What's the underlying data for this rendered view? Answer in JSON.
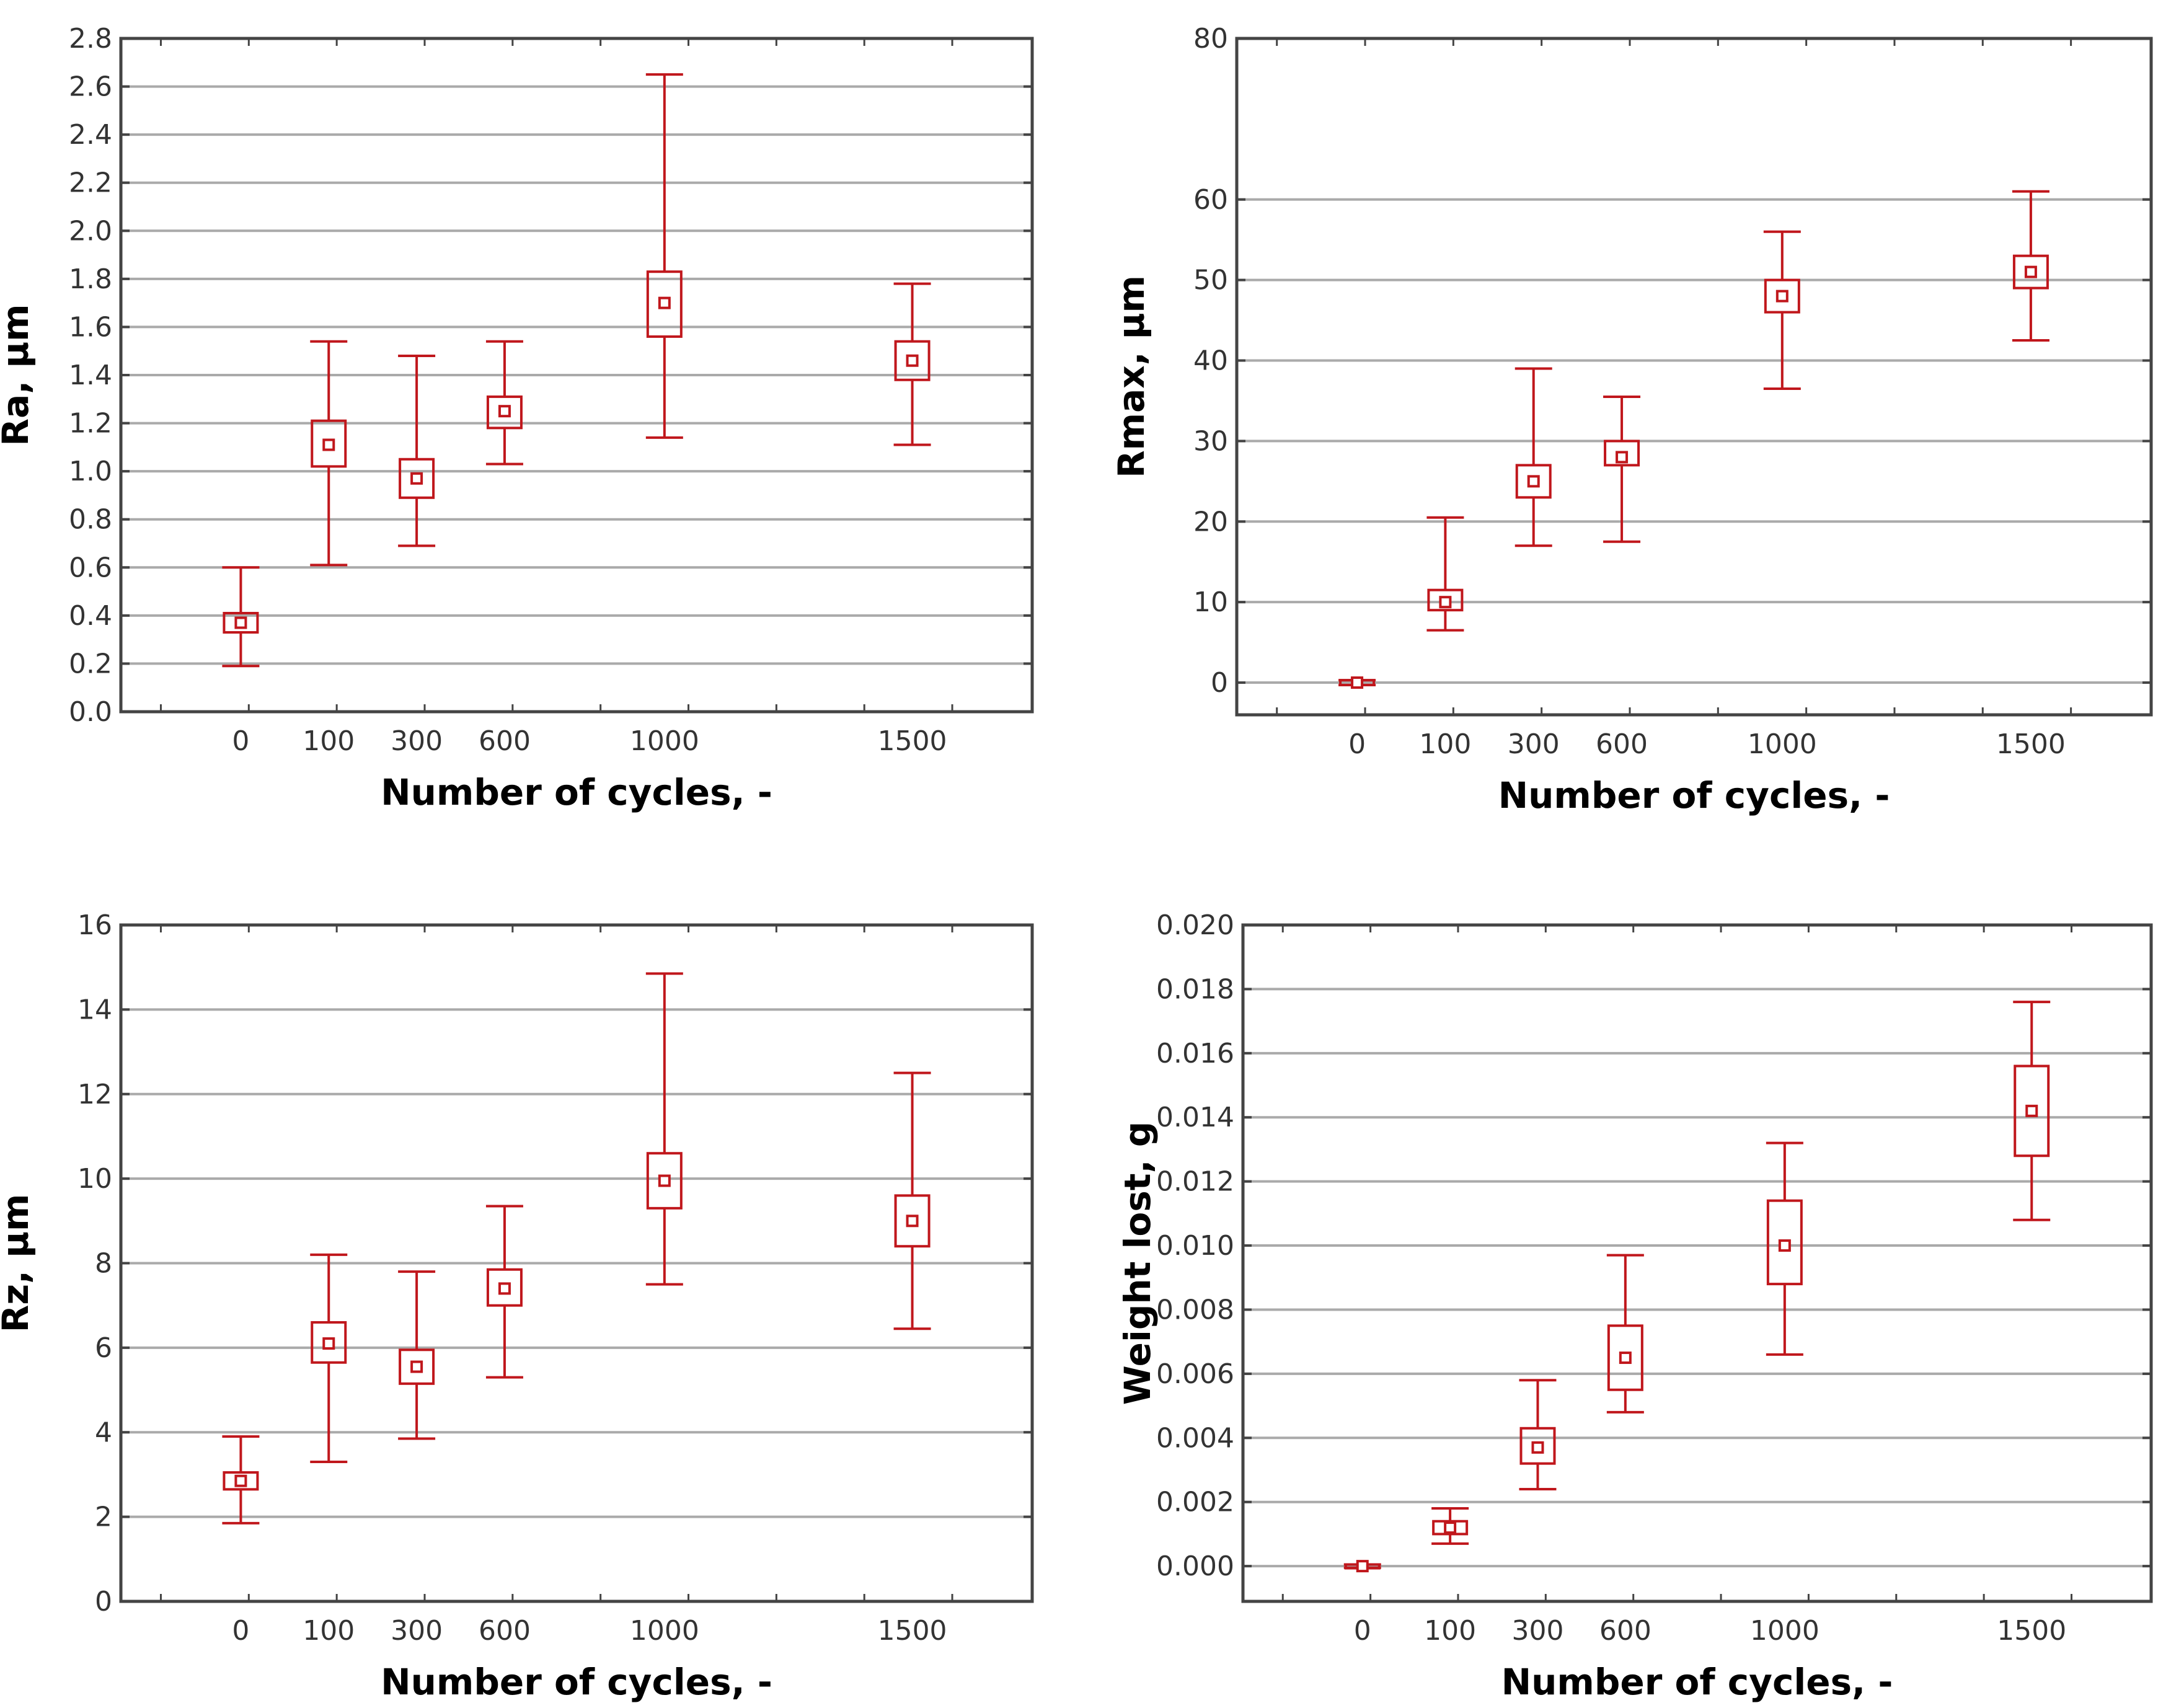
{
  "chart_data": [
    {
      "type": "box",
      "title": "",
      "xlabel": "Number of cycles, -",
      "ylabel": "Ra, µm",
      "ylim": [
        0,
        2.8
      ],
      "yticks": [
        "0.0",
        "0.2",
        "0.4",
        "0.6",
        "0.8",
        "1.0",
        "1.2",
        "1.4",
        "1.6",
        "1.8",
        "2.0",
        "2.2",
        "2.4",
        "2.6",
        "2.8"
      ],
      "grid": true,
      "x_tick_labels": [
        "0",
        "100",
        "300",
        "600",
        "1000",
        "1500"
      ],
      "x_positions": [
        0,
        100,
        300,
        600,
        1000,
        1500
      ],
      "series": [
        {
          "name": "Ra",
          "mean": [
            0.37,
            1.11,
            0.97,
            1.25,
            1.7,
            1.46
          ],
          "box_low": [
            0.33,
            1.02,
            0.89,
            1.18,
            1.56,
            1.38
          ],
          "box_high": [
            0.41,
            1.21,
            1.05,
            1.31,
            1.83,
            1.54
          ],
          "whisker_low": [
            0.19,
            0.61,
            0.69,
            1.03,
            1.14,
            1.11
          ],
          "whisker_high": [
            0.6,
            1.54,
            1.48,
            1.54,
            2.65,
            1.78
          ]
        }
      ]
    },
    {
      "type": "box",
      "title": "",
      "xlabel": "Number of cycles, -",
      "ylabel": "Rmax, µm",
      "ylim": [
        -4,
        80
      ],
      "yticks": [
        "0",
        "10",
        "20",
        "30",
        "40",
        "50",
        "60",
        "80"
      ],
      "grid": true,
      "x_tick_labels": [
        "0",
        "100",
        "300",
        "600",
        "1000",
        "1500"
      ],
      "x_positions": [
        0,
        100,
        300,
        600,
        1000,
        1500
      ],
      "series": [
        {
          "name": "Rmax",
          "mean": [
            0,
            10,
            25,
            28,
            48,
            51
          ],
          "box_low": [
            -0.3,
            9,
            23,
            27,
            46,
            49
          ],
          "box_high": [
            0.3,
            11.5,
            27,
            30,
            50,
            53
          ],
          "whisker_low": [
            -0.3,
            6.5,
            17,
            17.5,
            36.5,
            42.5
          ],
          "whisker_high": [
            0.3,
            20.5,
            39,
            35.5,
            56,
            61
          ]
        }
      ]
    },
    {
      "type": "box",
      "title": "",
      "xlabel": "Number of cycles, -",
      "ylabel": "Rz, µm",
      "ylim": [
        0,
        16
      ],
      "yticks": [
        "0",
        "2",
        "4",
        "6",
        "8",
        "10",
        "12",
        "14",
        "16"
      ],
      "grid": true,
      "x_tick_labels": [
        "0",
        "100",
        "300",
        "600",
        "1000",
        "1500"
      ],
      "x_positions": [
        0,
        100,
        300,
        600,
        1000,
        1500
      ],
      "series": [
        {
          "name": "Rz",
          "mean": [
            2.85,
            6.1,
            5.55,
            7.4,
            9.95,
            9.0
          ],
          "box_low": [
            2.65,
            5.65,
            5.15,
            7.0,
            9.3,
            8.4
          ],
          "box_high": [
            3.05,
            6.6,
            5.95,
            7.85,
            10.6,
            9.6
          ],
          "whisker_low": [
            1.85,
            3.3,
            3.85,
            5.3,
            7.5,
            6.45
          ],
          "whisker_high": [
            3.9,
            8.2,
            7.8,
            9.35,
            14.85,
            12.5
          ]
        }
      ]
    },
    {
      "type": "box",
      "title": "",
      "xlabel": "Number of cycles, -",
      "ylabel": "Weight lost, g",
      "ylim": [
        -0.0011,
        0.02
      ],
      "yticks": [
        "0.000",
        "0.002",
        "0.004",
        "0.006",
        "0.008",
        "0.010",
        "0.012",
        "0.014",
        "0.016",
        "0.018",
        "0.020"
      ],
      "grid": true,
      "x_tick_labels": [
        "0",
        "100",
        "300",
        "600",
        "1000",
        "1500"
      ],
      "x_positions": [
        0,
        100,
        300,
        600,
        1000,
        1500
      ],
      "series": [
        {
          "name": "Weight lost",
          "mean": [
            0,
            0.0012,
            0.0037,
            0.0065,
            0.01,
            0.0142
          ],
          "box_low": [
            -5e-05,
            0.001,
            0.0032,
            0.0055,
            0.0088,
            0.0128
          ],
          "box_high": [
            5e-05,
            0.0014,
            0.0043,
            0.0075,
            0.0114,
            0.0156
          ],
          "whisker_low": [
            -5e-05,
            0.0007,
            0.0024,
            0.0048,
            0.0066,
            0.0108
          ],
          "whisker_high": [
            5e-05,
            0.0018,
            0.0058,
            0.0097,
            0.0132,
            0.0176
          ]
        }
      ]
    }
  ],
  "style": {
    "series_color": "#c0171c",
    "grid_color": "#aaaaaa",
    "axis_color": "#444444"
  }
}
